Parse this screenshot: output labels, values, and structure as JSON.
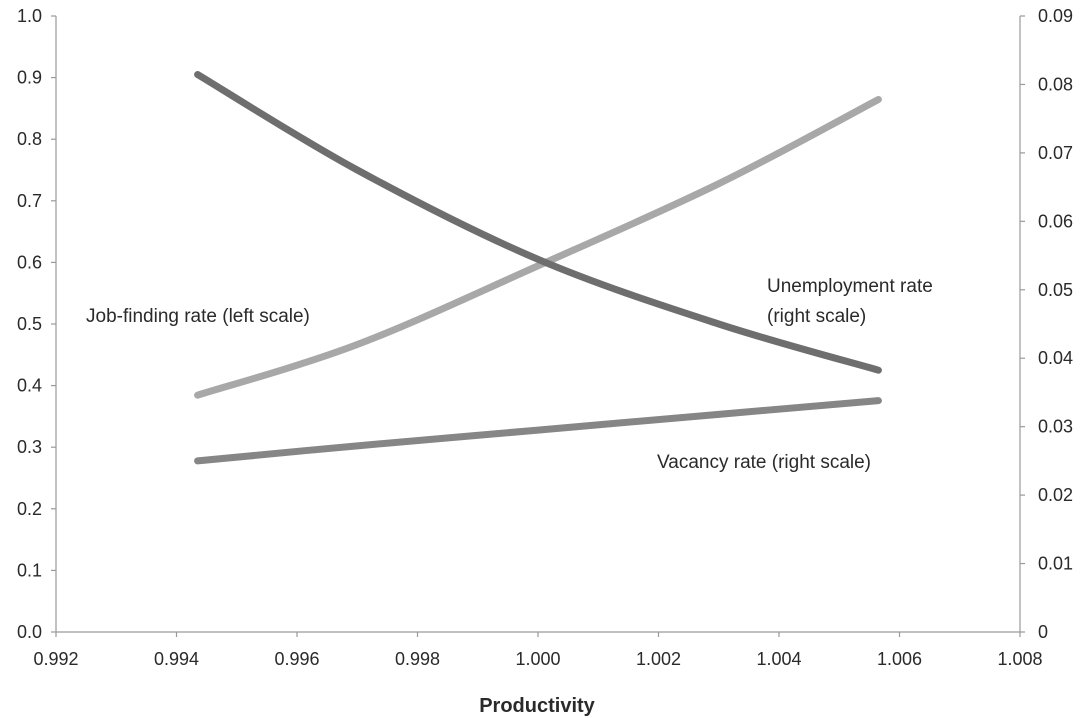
{
  "chart_data": {
    "type": "line",
    "xlabel": "Productivity",
    "xlim": [
      0.992,
      1.008
    ],
    "x_ticks": [
      "0.992",
      "0.994",
      "0.996",
      "0.998",
      "1.000",
      "1.002",
      "1.004",
      "1.006",
      "1.008"
    ],
    "y_left_lim": [
      0,
      1.0
    ],
    "y_left_ticks": [
      "0.0",
      "0.1",
      "0.2",
      "0.3",
      "0.4",
      "0.5",
      "0.6",
      "0.7",
      "0.8",
      "0.9",
      "1.0"
    ],
    "y_right_lim": [
      0,
      0.09
    ],
    "y_right_ticks": [
      "0",
      "0.01",
      "0.02",
      "0.03",
      "0.04",
      "0.05",
      "0.06",
      "0.07",
      "0.08",
      "0.09"
    ],
    "grid": false,
    "series": [
      {
        "name": "Job-finding rate (left scale)",
        "axis": "left",
        "color": "#6e6e6e",
        "x": [
          0.99435,
          0.997,
          1.0,
          1.003,
          1.00565
        ],
        "y": [
          0.905,
          0.75,
          0.605,
          0.5,
          0.425
        ]
      },
      {
        "name": "Unemployment rate (right scale)",
        "axis": "right",
        "color": "#a8a8a8",
        "x": [
          0.99435,
          0.997,
          1.0,
          1.003,
          1.00565
        ],
        "y": [
          0.0346,
          0.042,
          0.0535,
          0.0655,
          0.0778
        ]
      },
      {
        "name": "Vacancy rate (right scale)",
        "axis": "right",
        "color": "#868686",
        "x": [
          0.99435,
          0.997,
          1.0,
          1.003,
          1.00565
        ],
        "y": [
          0.025,
          0.0272,
          0.0295,
          0.0318,
          0.0338
        ]
      }
    ],
    "annotations": [
      {
        "text": "Job-finding rate (left scale)",
        "series": 0,
        "lines": [
          "Job-finding rate (left scale)"
        ]
      },
      {
        "text": "Unemployment rate (right scale)",
        "series": 1,
        "lines": [
          "Unemployment rate",
          "(right scale)"
        ]
      },
      {
        "text": "Vacancy rate (right scale)",
        "series": 2,
        "lines": [
          "Vacancy rate (right scale)"
        ]
      }
    ]
  }
}
